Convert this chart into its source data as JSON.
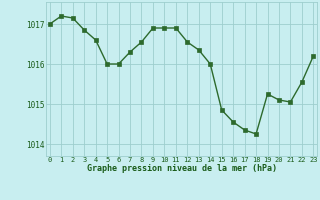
{
  "x": [
    0,
    1,
    2,
    3,
    4,
    5,
    6,
    7,
    8,
    9,
    10,
    11,
    12,
    13,
    14,
    15,
    16,
    17,
    18,
    19,
    20,
    21,
    22,
    23
  ],
  "y": [
    1017.0,
    1017.2,
    1017.15,
    1016.85,
    1016.6,
    1016.0,
    1016.0,
    1016.3,
    1016.55,
    1016.9,
    1016.9,
    1016.9,
    1016.55,
    1016.35,
    1016.0,
    1014.85,
    1014.55,
    1014.35,
    1014.25,
    1015.25,
    1015.1,
    1015.05,
    1015.55,
    1016.2
  ],
  "line_color": "#2d6a2d",
  "marker": "s",
  "marker_size": 2.2,
  "bg_color": "#c8eef0",
  "grid_color": "#9ecece",
  "xlabel": "Graphe pression niveau de la mer (hPa)",
  "xlabel_color": "#1a5c1a",
  "tick_color": "#1a5c1a",
  "ylim": [
    1013.7,
    1017.55
  ],
  "yticks": [
    1014,
    1015,
    1016,
    1017
  ],
  "xticks": [
    0,
    1,
    2,
    3,
    4,
    5,
    6,
    7,
    8,
    9,
    10,
    11,
    12,
    13,
    14,
    15,
    16,
    17,
    18,
    19,
    20,
    21,
    22,
    23
  ],
  "linewidth": 1.0
}
